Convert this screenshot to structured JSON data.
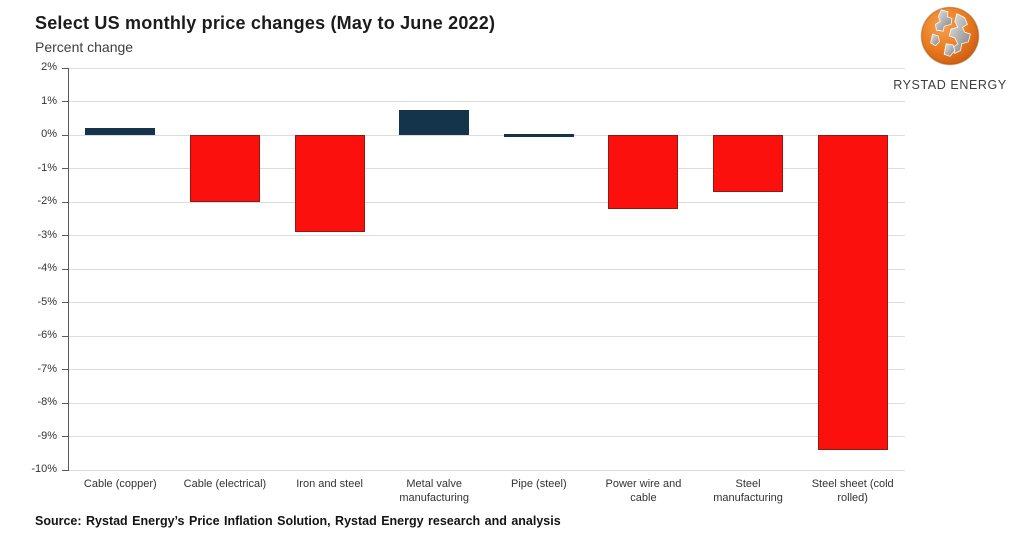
{
  "logo": {
    "label": "RYSTAD ENERGY",
    "globe_orange": "#ea7b1f",
    "globe_silver": "#a9a9a9"
  },
  "source": {
    "text": "Source: Rystad Energy’s Price Inflation Solution, Rystad Energy research and analysis"
  },
  "chart_data": {
    "type": "bar",
    "title": "Select US monthly price changes (May to June 2022)",
    "subtitle": "Percent change",
    "xlabel": "",
    "ylabel": "Percent change",
    "categories": [
      "Cable (copper)",
      "Cable (electrical)",
      "Iron and steel",
      "Metal valve manufacturing",
      "Pipe (steel)",
      "Power wire and cable",
      "Steel manufacturing",
      "Steel sheet (cold rolled)"
    ],
    "category_lines": [
      [
        "Cable (copper)"
      ],
      [
        "Cable (electrical)"
      ],
      [
        "Iron and steel"
      ],
      [
        "Metal valve",
        "manufacturing"
      ],
      [
        "Pipe (steel)"
      ],
      [
        "Power wire and",
        "cable"
      ],
      [
        "Steel",
        "manufacturing"
      ],
      [
        "Steel sheet (cold",
        "rolled)"
      ]
    ],
    "values": [
      0.2,
      -2.0,
      -2.9,
      0.75,
      0.0,
      -2.2,
      -1.7,
      -9.4
    ],
    "bar_fills": [
      "#14344c",
      "#fb100d",
      "#fb100d",
      "#14344c",
      "#14344c",
      "#fb100d",
      "#fb100d",
      "#fb100d"
    ],
    "bar_borders": [
      "none",
      "#8e1a10",
      "#8e1a10",
      "none",
      "none",
      "#8e1a10",
      "#8e1a10",
      "#8e1a10"
    ],
    "ylim": [
      -10,
      2
    ],
    "yticks": [
      {
        "v": 2,
        "label": "2%"
      },
      {
        "v": 1,
        "label": "1%"
      },
      {
        "v": 0,
        "label": "0%"
      },
      {
        "v": -1,
        "label": "-1%"
      },
      {
        "v": -2,
        "label": "-2%"
      },
      {
        "v": -3,
        "label": "-3%"
      },
      {
        "v": -4,
        "label": "-4%"
      },
      {
        "v": -5,
        "label": "-5%"
      },
      {
        "v": -6,
        "label": "-6%"
      },
      {
        "v": -7,
        "label": "-7%"
      },
      {
        "v": -8,
        "label": "-8%"
      },
      {
        "v": -9,
        "label": "-9%"
      },
      {
        "v": -10,
        "label": "-10%"
      }
    ],
    "grid": true,
    "legend": "none",
    "colors": {
      "positive": "#14344c",
      "negative": "#fb100d",
      "negative_border": "#8e1a10",
      "gridline": "#dcdcdc",
      "axis": "#5a5a5a",
      "text": "#333333"
    }
  }
}
